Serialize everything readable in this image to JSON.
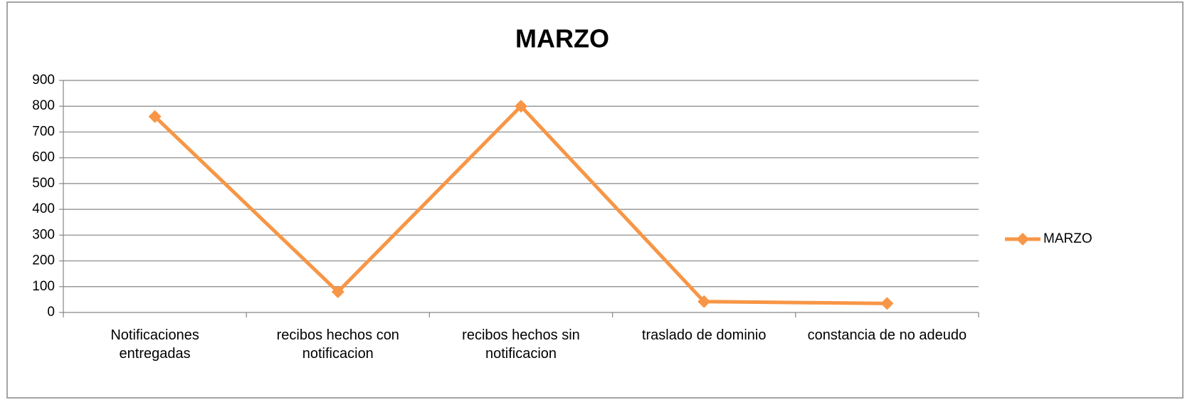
{
  "chart_data": {
    "type": "line",
    "title": "MARZO",
    "categories": [
      "Notificaciones\nentregadas",
      "recibos hechos con\nnotificacion",
      "recibos hechos sin\nnotificacion",
      "traslado de dominio",
      "constancia de no adeudo"
    ],
    "series": [
      {
        "name": "MARZO",
        "color": "#f79646",
        "values": [
          760,
          80,
          800,
          42,
          35
        ]
      }
    ],
    "ylim": [
      0,
      900
    ],
    "yticks": [
      0,
      100,
      200,
      300,
      400,
      500,
      600,
      700,
      800,
      900
    ],
    "grid": true,
    "legend": "right"
  }
}
